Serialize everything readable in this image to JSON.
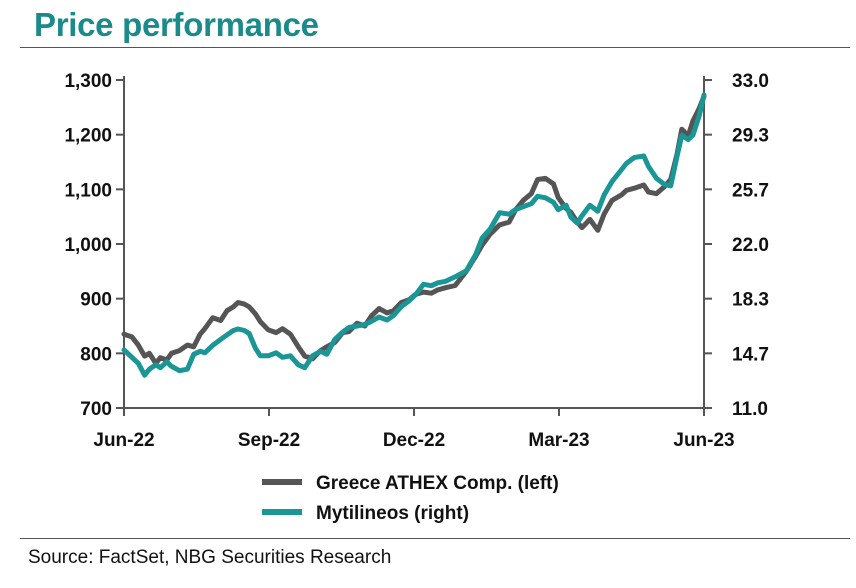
{
  "title": "Price performance",
  "source": "Source: FactSet, NBG Securities Research",
  "chart_data": {
    "type": "line",
    "x_ticks": [
      "Jun-22",
      "Sep-22",
      "Dec-22",
      "Mar-23",
      "Jun-23"
    ],
    "x_range": [
      "2022-06-01",
      "2023-06-02"
    ],
    "y_left": {
      "ticks": [
        "700",
        "800",
        "900",
        "1,000",
        "1,100",
        "1,200",
        "1,300"
      ],
      "range": [
        700,
        1300
      ]
    },
    "y_right": {
      "ticks": [
        "11.0",
        "14.7",
        "18.3",
        "22.0",
        "25.7",
        "29.3",
        "33.0"
      ],
      "range": [
        11.0,
        33.0
      ]
    },
    "grid": false,
    "legend_position": "bottom",
    "series": [
      {
        "name": "Greece ATHEX Comp. (left)",
        "axis": "left",
        "color": "#555555",
        "points": [
          [
            "2022-06-01",
            835
          ],
          [
            "2022-06-06",
            830
          ],
          [
            "2022-06-10",
            815
          ],
          [
            "2022-06-14",
            795
          ],
          [
            "2022-06-17",
            800
          ],
          [
            "2022-06-21",
            782
          ],
          [
            "2022-06-24",
            792
          ],
          [
            "2022-06-28",
            788
          ],
          [
            "2022-07-01",
            800
          ],
          [
            "2022-07-06",
            805
          ],
          [
            "2022-07-11",
            815
          ],
          [
            "2022-07-15",
            812
          ],
          [
            "2022-07-19",
            835
          ],
          [
            "2022-07-22",
            845
          ],
          [
            "2022-07-27",
            865
          ],
          [
            "2022-08-01",
            860
          ],
          [
            "2022-08-05",
            878
          ],
          [
            "2022-08-09",
            885
          ],
          [
            "2022-08-12",
            893
          ],
          [
            "2022-08-16",
            890
          ],
          [
            "2022-08-19",
            885
          ],
          [
            "2022-08-23",
            872
          ],
          [
            "2022-08-26",
            858
          ],
          [
            "2022-08-31",
            843
          ],
          [
            "2022-09-05",
            838
          ],
          [
            "2022-09-09",
            845
          ],
          [
            "2022-09-14",
            835
          ],
          [
            "2022-09-19",
            812
          ],
          [
            "2022-09-23",
            795
          ],
          [
            "2022-09-28",
            790
          ],
          [
            "2022-10-03",
            805
          ],
          [
            "2022-10-07",
            812
          ],
          [
            "2022-10-12",
            820
          ],
          [
            "2022-10-17",
            838
          ],
          [
            "2022-10-21",
            840
          ],
          [
            "2022-10-26",
            855
          ],
          [
            "2022-10-31",
            850
          ],
          [
            "2022-11-04",
            868
          ],
          [
            "2022-11-09",
            882
          ],
          [
            "2022-11-14",
            874
          ],
          [
            "2022-11-18",
            878
          ],
          [
            "2022-11-23",
            893
          ],
          [
            "2022-11-28",
            898
          ],
          [
            "2022-12-02",
            908
          ],
          [
            "2022-12-07",
            912
          ],
          [
            "2022-12-12",
            910
          ],
          [
            "2022-12-16",
            916
          ],
          [
            "2022-12-21",
            920
          ],
          [
            "2022-12-27",
            924
          ],
          [
            "2023-01-03",
            950
          ],
          [
            "2023-01-09",
            978
          ],
          [
            "2023-01-13",
            998
          ],
          [
            "2023-01-18",
            1018
          ],
          [
            "2023-01-24",
            1035
          ],
          [
            "2023-01-30",
            1040
          ],
          [
            "2023-02-03",
            1062
          ],
          [
            "2023-02-08",
            1080
          ],
          [
            "2023-02-13",
            1092
          ],
          [
            "2023-02-17",
            1118
          ],
          [
            "2023-02-22",
            1120
          ],
          [
            "2023-02-27",
            1110
          ],
          [
            "2023-03-02",
            1085
          ],
          [
            "2023-03-07",
            1065
          ],
          [
            "2023-03-10",
            1058
          ],
          [
            "2023-03-14",
            1040
          ],
          [
            "2023-03-17",
            1030
          ],
          [
            "2023-03-22",
            1045
          ],
          [
            "2023-03-27",
            1025
          ],
          [
            "2023-03-31",
            1055
          ],
          [
            "2023-04-05",
            1080
          ],
          [
            "2023-04-11",
            1090
          ],
          [
            "2023-04-14",
            1098
          ],
          [
            "2023-04-19",
            1102
          ],
          [
            "2023-04-25",
            1108
          ],
          [
            "2023-04-28",
            1095
          ],
          [
            "2023-05-03",
            1092
          ],
          [
            "2023-05-08",
            1105
          ],
          [
            "2023-05-12",
            1118
          ],
          [
            "2023-05-16",
            1165
          ],
          [
            "2023-05-19",
            1210
          ],
          [
            "2023-05-23",
            1198
          ],
          [
            "2023-05-26",
            1225
          ],
          [
            "2023-05-30",
            1248
          ],
          [
            "2023-06-02",
            1270
          ]
        ]
      },
      {
        "name": "Mytilineos (right)",
        "axis": "right",
        "color": "#1a9696",
        "points": [
          [
            "2022-06-01",
            14.9
          ],
          [
            "2022-06-06",
            14.4
          ],
          [
            "2022-06-10",
            14.0
          ],
          [
            "2022-06-14",
            13.2
          ],
          [
            "2022-06-17",
            13.6
          ],
          [
            "2022-06-21",
            13.9
          ],
          [
            "2022-06-24",
            13.7
          ],
          [
            "2022-06-28",
            14.1
          ],
          [
            "2022-07-01",
            13.8
          ],
          [
            "2022-07-06",
            13.5
          ],
          [
            "2022-07-11",
            13.6
          ],
          [
            "2022-07-15",
            14.6
          ],
          [
            "2022-07-19",
            14.8
          ],
          [
            "2022-07-22",
            14.7
          ],
          [
            "2022-07-27",
            15.2
          ],
          [
            "2022-08-01",
            15.6
          ],
          [
            "2022-08-05",
            15.9
          ],
          [
            "2022-08-09",
            16.2
          ],
          [
            "2022-08-12",
            16.3
          ],
          [
            "2022-08-16",
            16.2
          ],
          [
            "2022-08-19",
            16.0
          ],
          [
            "2022-08-23",
            15.0
          ],
          [
            "2022-08-26",
            14.5
          ],
          [
            "2022-08-31",
            14.5
          ],
          [
            "2022-09-05",
            14.7
          ],
          [
            "2022-09-09",
            14.4
          ],
          [
            "2022-09-14",
            14.5
          ],
          [
            "2022-09-19",
            13.9
          ],
          [
            "2022-09-23",
            13.7
          ],
          [
            "2022-09-28",
            14.5
          ],
          [
            "2022-10-03",
            14.8
          ],
          [
            "2022-10-07",
            14.6
          ],
          [
            "2022-10-12",
            15.6
          ],
          [
            "2022-10-17",
            16.1
          ],
          [
            "2022-10-21",
            16.4
          ],
          [
            "2022-10-26",
            16.5
          ],
          [
            "2022-10-31",
            16.6
          ],
          [
            "2022-11-04",
            16.8
          ],
          [
            "2022-11-09",
            17.1
          ],
          [
            "2022-11-14",
            16.9
          ],
          [
            "2022-11-18",
            17.2
          ],
          [
            "2022-11-23",
            17.8
          ],
          [
            "2022-11-28",
            18.2
          ],
          [
            "2022-12-02",
            18.6
          ],
          [
            "2022-12-07",
            19.3
          ],
          [
            "2022-12-12",
            19.2
          ],
          [
            "2022-12-16",
            19.4
          ],
          [
            "2022-12-21",
            19.5
          ],
          [
            "2022-12-27",
            19.8
          ],
          [
            "2023-01-03",
            20.2
          ],
          [
            "2023-01-09",
            21.3
          ],
          [
            "2023-01-13",
            22.4
          ],
          [
            "2023-01-18",
            23.0
          ],
          [
            "2023-01-24",
            24.1
          ],
          [
            "2023-01-30",
            24.0
          ],
          [
            "2023-02-03",
            24.3
          ],
          [
            "2023-02-08",
            24.5
          ],
          [
            "2023-02-13",
            24.7
          ],
          [
            "2023-02-17",
            25.2
          ],
          [
            "2023-02-22",
            25.1
          ],
          [
            "2023-02-27",
            24.8
          ],
          [
            "2023-03-02",
            24.3
          ],
          [
            "2023-03-07",
            24.6
          ],
          [
            "2023-03-10",
            23.8
          ],
          [
            "2023-03-14",
            23.4
          ],
          [
            "2023-03-17",
            23.9
          ],
          [
            "2023-03-22",
            24.6
          ],
          [
            "2023-03-27",
            24.2
          ],
          [
            "2023-03-31",
            25.3
          ],
          [
            "2023-04-05",
            26.2
          ],
          [
            "2023-04-11",
            27.0
          ],
          [
            "2023-04-14",
            27.4
          ],
          [
            "2023-04-19",
            27.8
          ],
          [
            "2023-04-25",
            27.9
          ],
          [
            "2023-04-28",
            27.2
          ],
          [
            "2023-05-03",
            26.4
          ],
          [
            "2023-05-08",
            26.0
          ],
          [
            "2023-05-12",
            25.9
          ],
          [
            "2023-05-16",
            27.9
          ],
          [
            "2023-05-19",
            29.3
          ],
          [
            "2023-05-23",
            29.0
          ],
          [
            "2023-05-26",
            29.3
          ],
          [
            "2023-05-30",
            30.6
          ],
          [
            "2023-06-02",
            32.0
          ]
        ]
      }
    ]
  }
}
